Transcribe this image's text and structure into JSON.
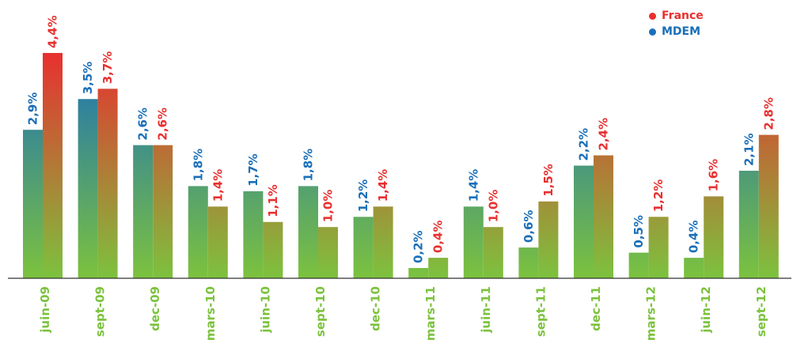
{
  "colors": {
    "france": "#e8302f",
    "mdem": "#1a6fb8",
    "bar_bottom": "#7cc23e",
    "category_label": "#7cc23e",
    "axis": "#333333"
  },
  "chart_data": {
    "type": "bar",
    "categories": [
      "juin-09",
      "sept-09",
      "dec-09",
      "mars-10",
      "juin-10",
      "sept-10",
      "dec-10",
      "mars-11",
      "juin-11",
      "sept-11",
      "dec-11",
      "mars-12",
      "juin-12",
      "sept-12"
    ],
    "series": [
      {
        "name": "MDEM",
        "values": [
          2.9,
          3.5,
          2.6,
          1.8,
          1.7,
          1.8,
          1.2,
          0.2,
          1.4,
          0.6,
          2.2,
          0.5,
          0.4,
          2.1
        ],
        "labels": [
          "2,9%",
          "3,5%",
          "2,6%",
          "1,8%",
          "1,7%",
          "1,8%",
          "1,2%",
          "0,2%",
          "1,4%",
          "0,6%",
          "2,2%",
          "0,5%",
          "0,4%",
          "2,1%"
        ]
      },
      {
        "name": "France",
        "values": [
          4.4,
          3.7,
          2.6,
          1.4,
          1.1,
          1.0,
          1.4,
          0.4,
          1.0,
          1.5,
          2.4,
          1.2,
          1.6,
          2.8
        ],
        "labels": [
          "4,4%",
          "3,7%",
          "2,6%",
          "1,4%",
          "1,1%",
          "1,0%",
          "1,4%",
          "0,4%",
          "1,0%",
          "1,5%",
          "2,4%",
          "1,2%",
          "1,6%",
          "2,8%"
        ]
      }
    ],
    "ylim": [
      0,
      4.4
    ],
    "grid": false,
    "legend": "top-right",
    "title": "",
    "xlabel": "",
    "ylabel": ""
  }
}
